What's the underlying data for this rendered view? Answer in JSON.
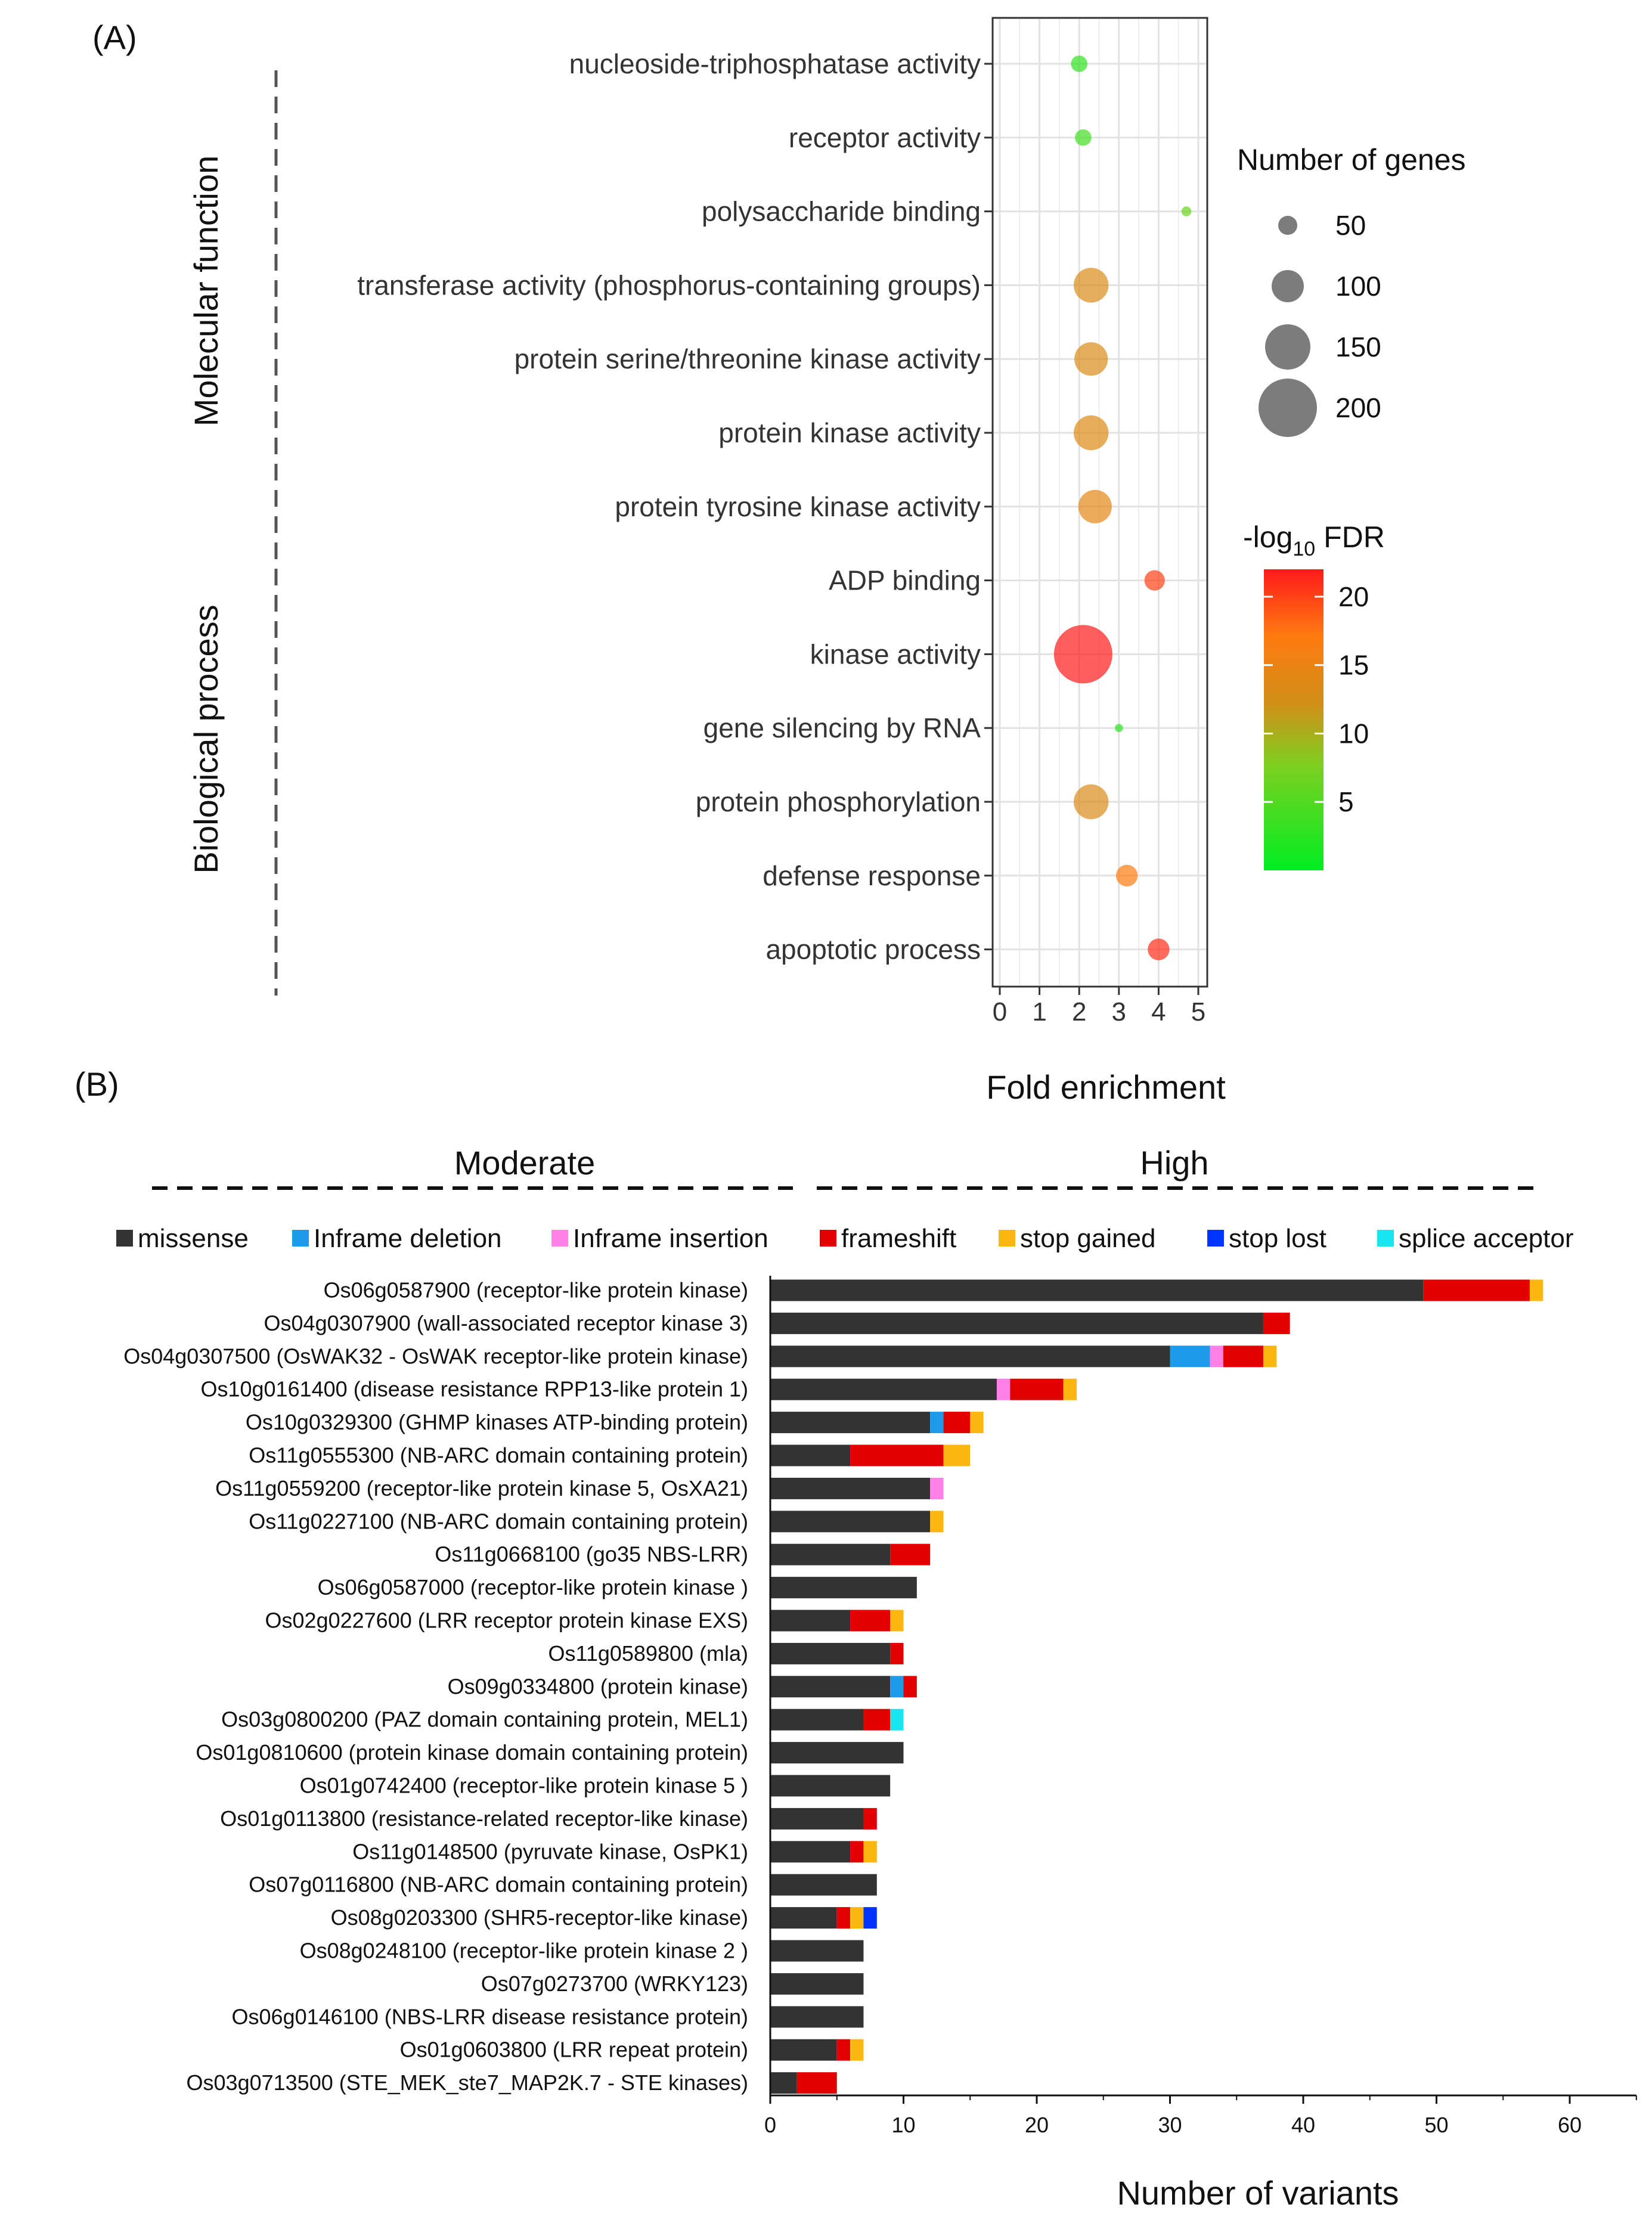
{
  "chart_data": [
    {
      "type": "scatter",
      "subtype": "bubble",
      "panel_label": "(A)",
      "xlabel": "Fold enrichment",
      "x_ticks": [
        "0",
        "1",
        "2",
        "3",
        "4",
        "5"
      ],
      "xlim": [
        0,
        5
      ],
      "groups": [
        {
          "name": "Molecular function",
          "count": 9
        },
        {
          "name": "Biological process",
          "count": 4
        }
      ],
      "terms": [
        {
          "name": "nucleoside-triphosphatase activity",
          "fold": 2.0,
          "genes": 40,
          "fdr": 3.0
        },
        {
          "name": "receptor activity",
          "fold": 2.1,
          "genes": 40,
          "fdr": 4.0
        },
        {
          "name": "polysaccharide binding",
          "fold": 4.7,
          "genes": 15,
          "fdr": 6.5
        },
        {
          "name": "transferase activity (phosphorus-containing groups)",
          "fold": 2.3,
          "genes": 110,
          "fdr": 13.0
        },
        {
          "name": "protein serine/threonine kinase activity",
          "fold": 2.3,
          "genes": 105,
          "fdr": 13.0
        },
        {
          "name": "protein kinase activity",
          "fold": 2.3,
          "genes": 110,
          "fdr": 13.5
        },
        {
          "name": "protein tyrosine kinase activity",
          "fold": 2.4,
          "genes": 105,
          "fdr": 14.0
        },
        {
          "name": "ADP binding",
          "fold": 3.9,
          "genes": 55,
          "fdr": 20.0
        },
        {
          "name": "kinase activity",
          "fold": 2.1,
          "genes": 200,
          "fdr": 22.0
        },
        {
          "name": "gene silencing by RNA",
          "fold": 3.0,
          "genes": 8,
          "fdr": 2.5
        },
        {
          "name": "protein phosphorylation",
          "fold": 2.3,
          "genes": 110,
          "fdr": 13.0
        },
        {
          "name": "defense response",
          "fold": 3.2,
          "genes": 60,
          "fdr": 17.0
        },
        {
          "name": "apoptotic process",
          "fold": 4.0,
          "genes": 60,
          "fdr": 21.0
        }
      ],
      "size_legend": {
        "title": "Number of genes",
        "values": [
          50,
          100,
          150,
          200
        ]
      },
      "color_legend": {
        "title_main": "-log",
        "title_sub": "10",
        "title_tail": " FDR",
        "ticks": [
          "20",
          "15",
          "10",
          "5"
        ],
        "range": [
          0,
          22
        ],
        "low_color": "#00ee22",
        "high_color": "#ff1a1a"
      }
    },
    {
      "type": "bar",
      "subtype": "stacked-horizontal",
      "panel_label": "(B)",
      "xlabel": "Number of variants",
      "xlim": [
        0,
        65
      ],
      "x_ticks": [
        "0",
        "10",
        "20",
        "30",
        "40",
        "50",
        "60"
      ],
      "impact_headers": [
        "Moderate",
        "High"
      ],
      "series": [
        {
          "name": "missense",
          "color": "#333333"
        },
        {
          "name": "Inframe deletion",
          "color": "#1e9be8"
        },
        {
          "name": "Inframe insertion",
          "color": "#ff80e6"
        },
        {
          "name": "frameshift",
          "color": "#e30000"
        },
        {
          "name": "stop gained",
          "color": "#fbb70f"
        },
        {
          "name": "stop lost",
          "color": "#0033ff"
        },
        {
          "name": "splice acceptor",
          "color": "#16e6f0"
        }
      ],
      "categories": [
        "Os06g0587900 (receptor-like protein kinase)",
        "Os04g0307900 (wall-associated receptor kinase 3)",
        "Os04g0307500 (OsWAK32 - OsWAK receptor-like protein kinase)",
        "Os10g0161400 (disease resistance RPP13-like protein 1)",
        "Os10g0329300 (GHMP kinases ATP-binding protein)",
        "Os11g0555300 (NB-ARC domain containing protein)",
        "Os11g0559200 (receptor-like protein kinase 5, OsXA21)",
        "Os11g0227100 (NB-ARC domain containing protein)",
        "Os11g0668100 (go35 NBS-LRR)",
        "Os06g0587000 (receptor-like protein kinase )",
        "Os02g0227600 (LRR receptor protein kinase EXS)",
        "Os11g0589800 (mla)",
        "Os09g0334800 (protein kinase)",
        "Os03g0800200 (PAZ domain containing protein, MEL1)",
        "Os01g0810600 (protein kinase domain containing protein)",
        "Os01g0742400 (receptor-like protein kinase 5 )",
        "Os01g0113800 (resistance-related receptor-like kinase)",
        "Os11g0148500 (pyruvate kinase, OsPK1)",
        "Os07g0116800 (NB-ARC domain containing protein)",
        "Os08g0203300 (SHR5-receptor-like kinase)",
        "Os08g0248100 (receptor-like protein kinase 2 )",
        "Os07g0273700 (WRKY123)",
        "Os06g0146100 (NBS-LRR disease resistance protein)",
        "Os01g0603800 (LRR repeat protein)",
        "Os03g0713500 (STE_MEK_ste7_MAP2K.7 - STE kinases)"
      ],
      "values": [
        [
          49,
          0,
          0,
          8,
          1,
          0,
          0
        ],
        [
          37,
          0,
          0,
          2,
          0,
          0,
          0
        ],
        [
          30,
          3,
          1,
          3,
          1,
          0,
          0
        ],
        [
          17,
          0,
          1,
          4,
          1,
          0,
          0
        ],
        [
          12,
          1,
          0,
          2,
          1,
          0,
          0
        ],
        [
          6,
          0,
          0,
          7,
          2,
          0,
          0
        ],
        [
          12,
          0,
          1,
          0,
          0,
          0,
          0
        ],
        [
          12,
          0,
          0,
          0,
          1,
          0,
          0
        ],
        [
          9,
          0,
          0,
          3,
          0,
          0,
          0
        ],
        [
          11,
          0,
          0,
          0,
          0,
          0,
          0
        ],
        [
          6,
          0,
          0,
          3,
          1,
          0,
          0
        ],
        [
          9,
          0,
          0,
          1,
          0,
          0,
          0
        ],
        [
          9,
          1,
          0,
          1,
          0,
          0,
          0
        ],
        [
          7,
          0,
          0,
          2,
          0,
          0,
          1
        ],
        [
          10,
          0,
          0,
          0,
          0,
          0,
          0
        ],
        [
          9,
          0,
          0,
          0,
          0,
          0,
          0
        ],
        [
          7,
          0,
          0,
          1,
          0,
          0,
          0
        ],
        [
          6,
          0,
          0,
          1,
          1,
          0,
          0
        ],
        [
          8,
          0,
          0,
          0,
          0,
          0,
          0
        ],
        [
          5,
          0,
          0,
          1,
          1,
          1,
          0
        ],
        [
          7,
          0,
          0,
          0,
          0,
          0,
          0
        ],
        [
          7,
          0,
          0,
          0,
          0,
          0,
          0
        ],
        [
          7,
          0,
          0,
          0,
          0,
          0,
          0
        ],
        [
          5,
          0,
          0,
          1,
          1,
          0,
          0
        ],
        [
          2,
          0,
          0,
          3,
          0,
          0,
          0
        ]
      ]
    }
  ]
}
